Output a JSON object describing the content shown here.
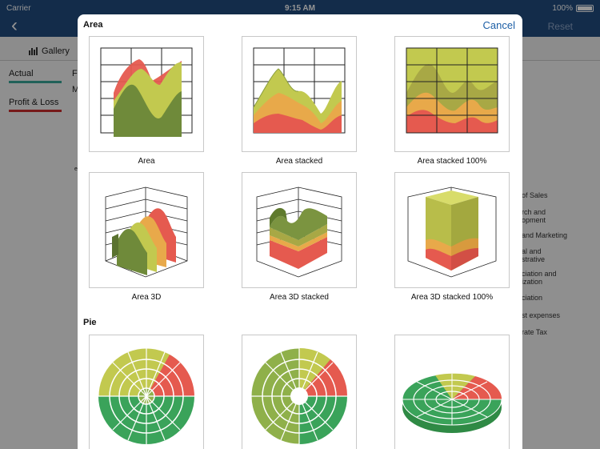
{
  "status": {
    "carrier": "Carrier",
    "time": "9:15 AM",
    "battery": "100%"
  },
  "nav": {
    "reset": "Reset"
  },
  "toolbar": {
    "gallery": "Gallery"
  },
  "legend": [
    {
      "label": "Actual",
      "color": "#3aa89a"
    },
    {
      "label": "Profit & Loss",
      "color": "#cc2d2d"
    }
  ],
  "background_fragments": [
    "F",
    "M",
    "e"
  ],
  "right_list": [
    "of Sales",
    "rch and\nopment",
    "and Marketing",
    "al and\nstrative",
    "ciation and\nization",
    "ciation",
    "st expenses",
    "rate Tax"
  ],
  "modal": {
    "title": "Area",
    "cancel": "Cancel",
    "sections": [
      {
        "title": "Area",
        "items": [
          {
            "label": "Area",
            "icon": "area-chart-icon"
          },
          {
            "label": "Area stacked",
            "icon": "area-stacked-chart-icon"
          },
          {
            "label": "Area stacked 100%",
            "icon": "area-stacked-100-chart-icon"
          },
          {
            "label": "Area 3D",
            "icon": "area-3d-chart-icon"
          },
          {
            "label": "Area 3D stacked",
            "icon": "area-3d-stacked-chart-icon"
          },
          {
            "label": "Area 3D stacked 100%",
            "icon": "area-3d-stacked-100-chart-icon"
          }
        ]
      },
      {
        "title": "Pie",
        "items": [
          {
            "label": "",
            "icon": "pie-rings-chart-icon"
          },
          {
            "label": "",
            "icon": "pie-doughnut-chart-icon"
          },
          {
            "label": "",
            "icon": "pie-3d-chart-icon"
          }
        ]
      }
    ]
  },
  "colors": {
    "accent": "#1d5fa6",
    "navbar": "#214c80",
    "green": "#6f8a3a",
    "yellow": "#c2c94f",
    "orange": "#e8a94a",
    "red": "#e55a4f"
  }
}
